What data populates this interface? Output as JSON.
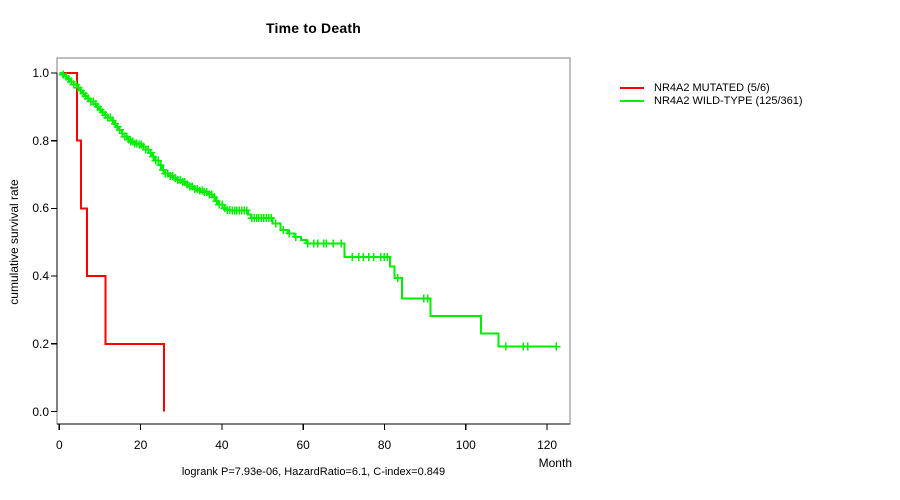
{
  "title": "Time to Death",
  "footer": "logrank P=7.93e-06, HazardRatio=6.1, C-index=0.849",
  "axes": {
    "x_label": "Month",
    "y_label": "cumulative survival rate",
    "x_ticks": [
      0,
      20,
      40,
      60,
      80,
      100,
      120
    ],
    "y_tick_labels": [
      "1.0",
      "0.8",
      "0.6",
      "0.4",
      "0.2",
      "0.0"
    ]
  },
  "legend": {
    "items": [
      {
        "label": "NR4A2 MUTATED (5/6)",
        "color": "#ff0000"
      },
      {
        "label": "NR4A2 WILD-TYPE (125/361)",
        "color": "#00ee00"
      }
    ]
  },
  "colors": {
    "mutated": "#ff0000",
    "wild_type": "#00ee00",
    "frame": "#808080",
    "axis": "#000000",
    "text": "#000000"
  },
  "chart_data": {
    "type": "line",
    "subtype": "kaplan-meier-step",
    "title": "Time to Death",
    "xlabel": "Month",
    "ylabel": "cumulative survival rate",
    "xlim": [
      0,
      126
    ],
    "ylim": [
      0.0,
      1.0
    ],
    "x_ticks": [
      0,
      20,
      40,
      60,
      80,
      100,
      120
    ],
    "y_ticks": [
      1.0,
      0.8,
      0.6,
      0.4,
      0.2,
      0.0
    ],
    "grid": false,
    "legend_position": "right-outside",
    "annotation": "logrank P=7.93e-06, HazardRatio=6.1, C-index=0.849",
    "series": [
      {
        "name": "NR4A2 MUTATED (5/6)",
        "color": "#ff0000",
        "events_total": "5/6",
        "steps": [
          [
            0,
            1.0
          ],
          [
            4.3,
            0.8
          ],
          [
            5.3,
            0.6
          ],
          [
            6.8,
            0.4
          ],
          [
            11.4,
            0.2
          ],
          [
            25.8,
            0.0
          ]
        ],
        "end_month": 25.8,
        "censor_months": []
      },
      {
        "name": "NR4A2 WILD-TYPE (125/361)",
        "color": "#00ee00",
        "events_total": "125/361",
        "steps": [
          [
            0,
            1.0
          ],
          [
            0.7,
            0.995
          ],
          [
            1.4,
            0.989
          ],
          [
            2.1,
            0.983
          ],
          [
            2.8,
            0.975
          ],
          [
            3.5,
            0.966
          ],
          [
            4.2,
            0.957
          ],
          [
            4.9,
            0.948
          ],
          [
            5.6,
            0.94
          ],
          [
            6.3,
            0.932
          ],
          [
            7,
            0.924
          ],
          [
            7.7,
            0.916
          ],
          [
            8.4,
            0.908
          ],
          [
            9.1,
            0.9
          ],
          [
            9.8,
            0.892
          ],
          [
            10.5,
            0.884
          ],
          [
            11.2,
            0.876
          ],
          [
            11.9,
            0.868
          ],
          [
            12.6,
            0.859
          ],
          [
            13.3,
            0.85
          ],
          [
            14,
            0.841
          ],
          [
            14.7,
            0.832
          ],
          [
            15.4,
            0.822
          ],
          [
            16.1,
            0.812
          ],
          [
            16.8,
            0.803
          ],
          [
            17.5,
            0.797
          ],
          [
            18.4,
            0.792
          ],
          [
            19.4,
            0.789
          ],
          [
            20.4,
            0.783
          ],
          [
            21.2,
            0.774
          ],
          [
            22,
            0.764
          ],
          [
            22.8,
            0.753
          ],
          [
            23.6,
            0.741
          ],
          [
            24.4,
            0.728
          ],
          [
            25.2,
            0.714
          ],
          [
            26,
            0.703
          ],
          [
            27,
            0.696
          ],
          [
            28,
            0.69
          ],
          [
            29,
            0.684
          ],
          [
            30,
            0.678
          ],
          [
            31,
            0.671
          ],
          [
            32,
            0.664
          ],
          [
            33,
            0.658
          ],
          [
            34.2,
            0.653
          ],
          [
            35.4,
            0.648
          ],
          [
            36.6,
            0.641
          ],
          [
            37.6,
            0.633
          ],
          [
            38.4,
            0.622
          ],
          [
            39.2,
            0.611
          ],
          [
            40.2,
            0.601
          ],
          [
            41.2,
            0.596
          ],
          [
            42.2,
            0.594
          ],
          [
            46.4,
            0.582
          ],
          [
            47.2,
            0.571
          ],
          [
            52.4,
            0.556
          ],
          [
            54.4,
            0.536
          ],
          [
            56.2,
            0.526
          ],
          [
            57.8,
            0.516
          ],
          [
            59.4,
            0.506
          ],
          [
            60.8,
            0.497
          ],
          [
            70.2,
            0.457
          ],
          [
            81.4,
            0.428
          ],
          [
            82.4,
            0.394
          ],
          [
            84.3,
            0.334
          ],
          [
            91.3,
            0.282
          ],
          [
            103.7,
            0.231
          ],
          [
            108,
            0.192
          ]
        ],
        "end_month": 122.4,
        "censor_months": [
          0.9,
          1.7,
          2.3,
          2.9,
          3.5,
          4.1,
          4.7,
          5.3,
          5.9,
          6.5,
          7.1,
          7.7,
          8.3,
          8.9,
          9.5,
          10.1,
          10.7,
          11.3,
          11.9,
          12.5,
          13.1,
          13.7,
          14.3,
          14.9,
          15.5,
          16.1,
          16.6,
          17.1,
          17.6,
          18.1,
          18.6,
          19.1,
          19.6,
          20.1,
          20.7,
          21.3,
          21.9,
          22.5,
          23.1,
          23.7,
          24.3,
          24.9,
          25.5,
          26.1,
          26.7,
          27.3,
          27.9,
          28.5,
          29.1,
          29.7,
          30.3,
          30.9,
          31.5,
          32.1,
          32.7,
          33.3,
          33.9,
          34.5,
          35.1,
          35.7,
          36.3,
          36.9,
          37.5,
          38.1,
          38.7,
          39.3,
          40.1,
          40.7,
          41.3,
          41.9,
          42.5,
          43.1,
          43.7,
          44.3,
          44.9,
          45.5,
          46.1,
          47.3,
          47.9,
          48.5,
          49.1,
          49.7,
          50.3,
          50.9,
          51.5,
          52.1,
          53.2,
          55.1,
          56.6,
          58.2,
          61.1,
          62.6,
          63.6,
          65.1,
          65.7,
          67.4,
          69.4,
          72.1,
          73.6,
          74.8,
          76.1,
          77.3,
          79.1,
          79.9,
          80.7,
          83.2,
          89.6,
          90.6,
          109.8,
          114.1,
          115.2,
          122.3
        ]
      }
    ]
  }
}
